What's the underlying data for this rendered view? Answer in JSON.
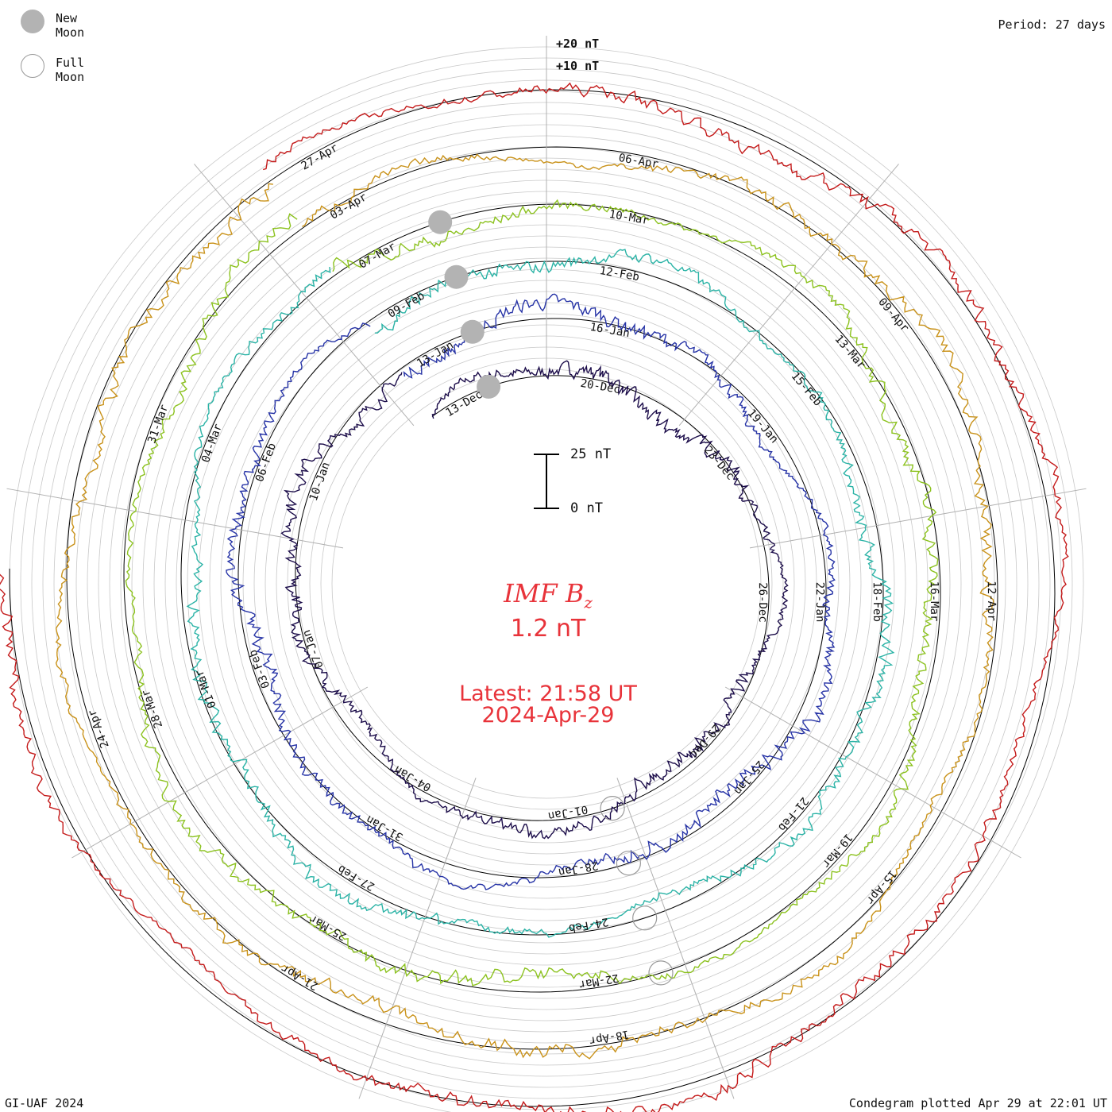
{
  "legend": {
    "new_moon_label": "New Moon",
    "full_moon_label": "Full Moon",
    "new_moon_color": "#b3b3b3",
    "full_moon_color": "#999999"
  },
  "period_label": "Period: 27 days",
  "scale_ring_labels": [
    "+20 nT",
    "+10 nT"
  ],
  "scale_bar": {
    "top_label": "25 nT",
    "bottom_label": "0 nT"
  },
  "center": {
    "quantity_prefix": "IMF B",
    "quantity_subscript": "z",
    "value": "1.2 nT",
    "latest": "Latest: 21:58 UT",
    "latest_date": "2024-Apr-29",
    "color": "#e8333a"
  },
  "footer": {
    "left": "GI-UAF 2024",
    "right": "Condegram plotted Apr 29 at 22:01 UT"
  },
  "chart_data": {
    "type": "line",
    "title": "IMF Bz",
    "units": "nT",
    "period_days": 27,
    "layout": "condegram spiral",
    "series": [
      {
        "name": "ring-1",
        "color": "#1c0d4a",
        "dates": [
          "13-Dec",
          "20-Dec",
          "23-Dec",
          "26-Dec",
          "29-Dec",
          "01-Jan",
          "04-Jan",
          "07-Jan",
          "10-Jan"
        ]
      },
      {
        "name": "ring-2",
        "color": "#2633a6",
        "dates": [
          "13-Jan",
          "16-Jan",
          "19-Jan",
          "22-Jan",
          "25-Jan",
          "28-Jan",
          "31-Jan",
          "03-Feb",
          "06-Feb"
        ]
      },
      {
        "name": "ring-3",
        "color": "#2bb3a6",
        "dates": [
          "09-Feb",
          "12-Feb",
          "15-Feb",
          "18-Feb",
          "21-Feb",
          "24-Feb",
          "27-Feb",
          "01-Mar",
          "04-Mar"
        ]
      },
      {
        "name": "ring-4",
        "color": "#8cc21f",
        "dates": [
          "07-Mar",
          "10-Mar",
          "13-Mar",
          "16-Mar",
          "19-Mar",
          "22-Mar",
          "25-Mar",
          "28-Mar",
          "31-Mar"
        ]
      },
      {
        "name": "ring-5",
        "color": "#c9921a",
        "dates": [
          "03-Apr",
          "06-Apr",
          "09-Apr",
          "12-Apr",
          "15-Apr",
          "18-Apr",
          "21-Apr",
          "24-Apr"
        ]
      },
      {
        "name": "ring-6",
        "color": "#c41a1a",
        "dates": [
          "27-Apr"
        ]
      }
    ],
    "new_moon_dates": [
      "11-Jan",
      "09-Feb",
      "10-Mar",
      "08-Apr"
    ],
    "full_moon_dates": [
      "25-Jan",
      "24-Feb",
      "25-Mar",
      "23-Apr"
    ]
  }
}
